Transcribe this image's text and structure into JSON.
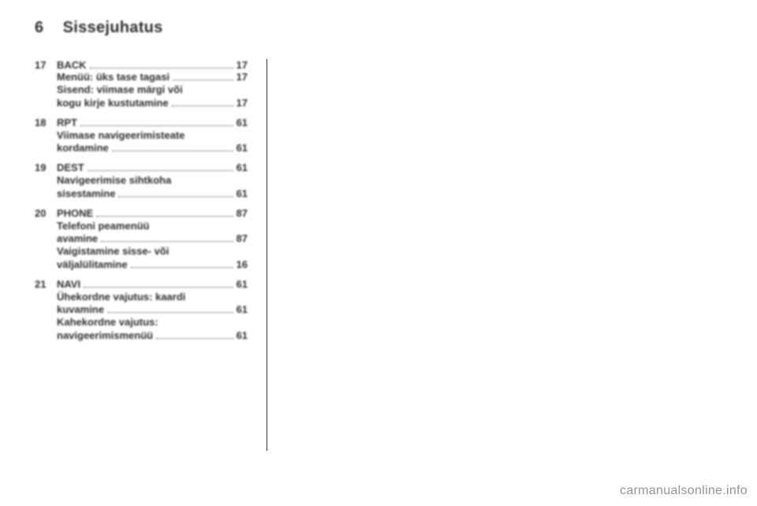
{
  "page_number": "6",
  "page_title": "Sissejuhatus",
  "watermark": "carmanualsonline.info",
  "toc": [
    {
      "num": "17",
      "head": {
        "label": "BACK",
        "page": "17"
      },
      "subs": [
        {
          "lines": [
            "Menüü: üks tase tagasi"
          ],
          "page": "17"
        },
        {
          "lines": [
            "Sisend: viimase märgi või",
            "kogu kirje kustutamine"
          ],
          "page": "17"
        }
      ]
    },
    {
      "num": "18",
      "head": {
        "label": "RPT",
        "page": "61"
      },
      "subs": [
        {
          "lines": [
            "Viimase navigeerimisteate",
            "kordamine"
          ],
          "page": "61"
        }
      ]
    },
    {
      "num": "19",
      "head": {
        "label": "DEST",
        "page": "61"
      },
      "subs": [
        {
          "lines": [
            "Navigeerimise sihtkoha",
            "sisestamine"
          ],
          "page": "61"
        }
      ]
    },
    {
      "num": "20",
      "head": {
        "label": "PHONE",
        "page": "87"
      },
      "subs": [
        {
          "lines": [
            "Telefoni peamenüü",
            "avamine"
          ],
          "page": "87"
        },
        {
          "lines": [
            "Vaigistamine sisse- või",
            "väljalülitamine"
          ],
          "page": "16"
        }
      ]
    },
    {
      "num": "21",
      "head": {
        "label": "NAVI",
        "page": "61"
      },
      "subs": [
        {
          "lines": [
            "Ühekordne vajutus: kaardi",
            "kuvamine"
          ],
          "page": "61"
        },
        {
          "lines": [
            "Kahekordne vajutus:",
            "navigeerimismenüü"
          ],
          "page": "61"
        }
      ]
    }
  ]
}
